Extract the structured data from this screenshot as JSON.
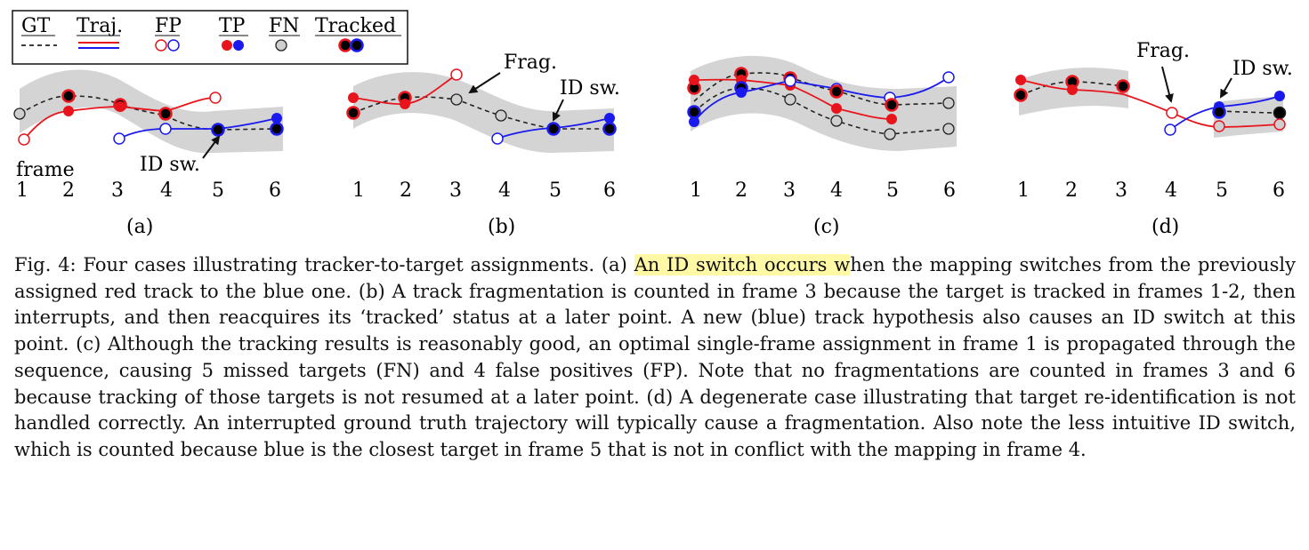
{
  "legend": {
    "items": [
      {
        "key": "gt",
        "label": "GT"
      },
      {
        "key": "traj",
        "label": "Traj."
      },
      {
        "key": "fp",
        "label": "FP"
      },
      {
        "key": "tp",
        "label": "TP"
      },
      {
        "key": "fn",
        "label": "FN"
      },
      {
        "key": "tracked",
        "label": "Tracked"
      }
    ]
  },
  "colors": {
    "red": "#e8141c",
    "blue": "#1a1aee",
    "gt": "#222222",
    "band": "#d4d4d4",
    "fn_fill": "#cfcfcf"
  },
  "panels": [
    {
      "letter": "(a)",
      "frames": [
        "1",
        "2",
        "3",
        "4",
        "5",
        "6"
      ],
      "frame_word": "frame",
      "annotations": [
        "ID sw."
      ]
    },
    {
      "letter": "(b)",
      "frames": [
        "1",
        "2",
        "3",
        "4",
        "5",
        "6"
      ],
      "annotations": [
        "Frag.",
        "ID sw."
      ]
    },
    {
      "letter": "(c)",
      "frames": [
        "1",
        "2",
        "3",
        "4",
        "5",
        "6"
      ],
      "annotations": []
    },
    {
      "letter": "(d)",
      "frames": [
        "1",
        "2",
        "3",
        "4",
        "5",
        "6"
      ],
      "annotations": [
        "Frag.",
        "ID sw."
      ]
    }
  ],
  "caption": {
    "prefix": "Fig. 4: Four cases illustrating tracker-to-target assignments. (a) ",
    "highlight": "An ID switch occurs w",
    "body": "hen the mapping switches from the previously assigned red track to the blue one. (b) A track fragmentation is counted in frame 3 because the target is tracked in frames 1-2, then interrupts, and then reacquires its ‘tracked’ status at a later point. A new (blue) track hypothesis also causes an ID switch at this point. (c) Although the tracking results is reasonably good, an optimal single-frame assignment in frame 1 is propagated through the sequence, causing 5 missed targets (FN) and 4 false positives (FP). Note that no fragmentations are counted in frames 3 and 6 because tracking of those targets is not resumed at a later point. (d) A degenerate case illustrating that target re-identification is not handled correctly. An interrupted ground truth trajectory will typically cause a fragmentation. Also note the less intuitive ID switch, which is counted because blue is the closest target in frame 5 that is not in conflict with the mapping in frame 4."
  }
}
